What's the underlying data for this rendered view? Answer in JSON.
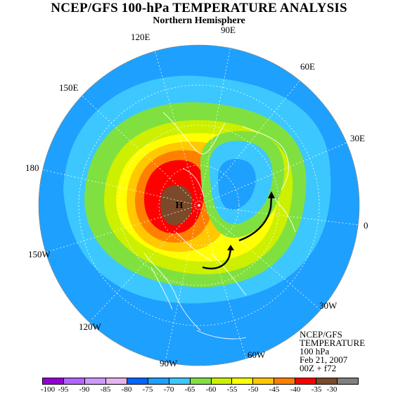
{
  "header": {
    "title": "NCEP/GFS 100-hPa TEMPERATURE ANALYSIS",
    "subtitle": "Northern Hemisphere"
  },
  "map": {
    "high_marker": "H",
    "longitude_labels": [
      "120E",
      "90E",
      "60E",
      "150E",
      "30E",
      "180",
      "0",
      "150W",
      "30W",
      "120W",
      "90W",
      "60W"
    ]
  },
  "info_box": {
    "lines": [
      "NCEP/GFS",
      "TEMPERATURE",
      "100 hPa",
      "Feb 21, 2007",
      "00Z + f72"
    ]
  },
  "colorbar": {
    "tick_labels": [
      "-100",
      "-95",
      "-90",
      "-85",
      "-80",
      "-75",
      "-70",
      "-65",
      "-60",
      "-55",
      "-50",
      "-45",
      "-40",
      "-35",
      "-30"
    ],
    "colors": [
      "#9400d3",
      "#b266ff",
      "#cc99ff",
      "#e6b3f0",
      "#0066ff",
      "#1ea0ff",
      "#3cc8ff",
      "#80e040",
      "#ccf000",
      "#ffff00",
      "#ffc800",
      "#ff8000",
      "#ff0000",
      "#7a4a2a",
      "#808080"
    ]
  },
  "colors": {
    "background_band": "#1ea0ff",
    "coastline": "#ffffff"
  }
}
